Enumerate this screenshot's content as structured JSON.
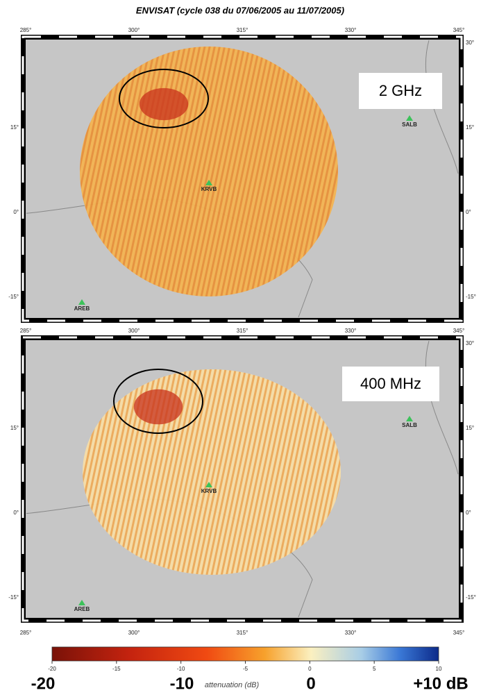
{
  "title": "ENVISAT (cycle 038 du 07/06/2005 au 11/07/2005)",
  "maps": [
    {
      "band_label": "2 GHz",
      "lon_ticks": [
        "285°",
        "300°",
        "315°",
        "330°",
        "345°"
      ],
      "lat_ticks": [
        "30°",
        "15°",
        "0°",
        "-15°"
      ],
      "stations": [
        "SALB",
        "KRVB",
        "AREB"
      ]
    },
    {
      "band_label": "400 MHz",
      "lon_ticks": [
        "285°",
        "300°",
        "315°",
        "330°",
        "345°"
      ],
      "lat_ticks": [
        "30°",
        "15°",
        "0°",
        "-15°"
      ],
      "stations": [
        "SALB",
        "KRVB",
        "AREB"
      ]
    }
  ],
  "colorbar": {
    "lim": [
      -20,
      10
    ],
    "ticks": [
      -20,
      -15,
      -10,
      -5,
      0,
      5,
      10
    ],
    "axis_label": "attenuation (dB)",
    "big_labels": [
      "-20",
      "-10",
      "0",
      "+10 dB"
    ]
  }
}
